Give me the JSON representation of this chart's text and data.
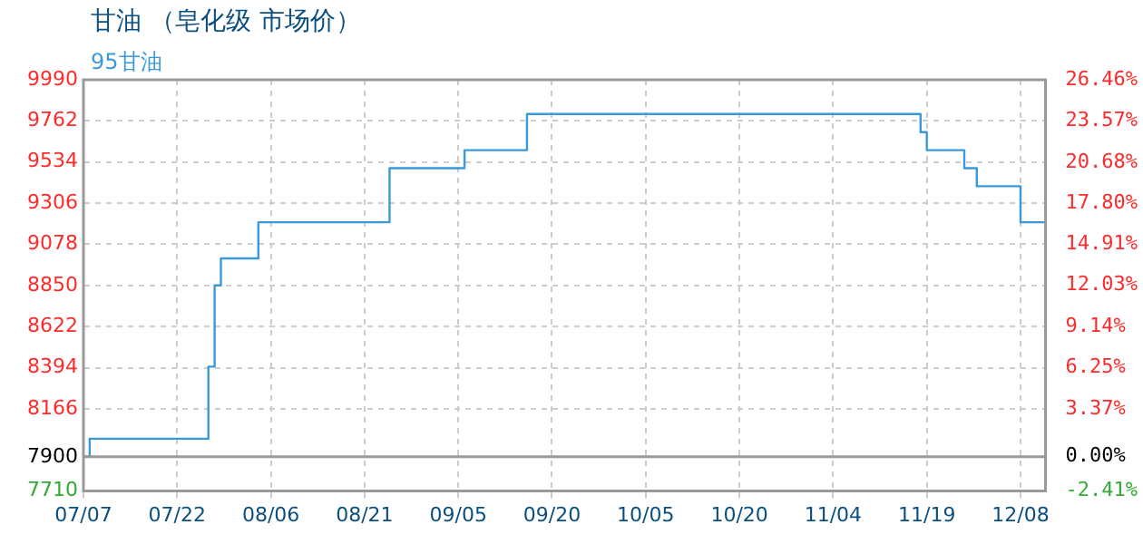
{
  "chart_data": {
    "type": "step",
    "title": "甘油 （皂化级 市场价）",
    "categories": [
      "07/07",
      null,
      null,
      null,
      null,
      null,
      null,
      null,
      null,
      null,
      null,
      null,
      null,
      null,
      null,
      "07/22",
      null,
      null,
      null,
      null,
      null,
      null,
      null,
      null,
      null,
      null,
      null,
      null,
      null,
      null,
      "08/06",
      null,
      null,
      null,
      null,
      null,
      null,
      null,
      null,
      null,
      null,
      null,
      null,
      null,
      null,
      "08/21",
      null,
      null,
      null,
      null,
      null,
      null,
      null,
      null,
      null,
      null,
      null,
      null,
      null,
      null,
      "09/05",
      null,
      null,
      null,
      null,
      null,
      null,
      null,
      null,
      null,
      null,
      null,
      null,
      null,
      null,
      "09/20",
      null,
      null,
      null,
      null,
      null,
      null,
      null,
      null,
      null,
      null,
      null,
      null,
      null,
      null,
      "10/05",
      null,
      null,
      null,
      null,
      null,
      null,
      null,
      null,
      null,
      null,
      null,
      null,
      null,
      null,
      "10/20",
      null,
      null,
      null,
      null,
      null,
      null,
      null,
      null,
      null,
      null,
      null,
      null,
      null,
      null,
      "11/04",
      null,
      null,
      null,
      null,
      null,
      null,
      null,
      null,
      null,
      null,
      null,
      null,
      null,
      null,
      "11/19",
      null,
      null,
      null,
      null,
      null,
      null,
      null,
      null,
      null,
      null,
      null,
      null,
      null,
      null,
      "12/08",
      null,
      null,
      null,
      null
    ],
    "series": [
      {
        "name": "95甘油",
        "color": "#3a9ad9",
        "values": [
          7900,
          7900,
          8000,
          8000,
          8000,
          8000,
          8000,
          8000,
          8000,
          8000,
          8000,
          8000,
          8000,
          8000,
          8000,
          8000,
          8000,
          8000,
          8000,
          8000,
          8000,
          8400,
          8850,
          9000,
          9000,
          9000,
          9000,
          9000,
          9000,
          9200,
          9200,
          9200,
          9200,
          9200,
          9200,
          9200,
          9200,
          9200,
          9200,
          9200,
          9200,
          9200,
          9200,
          9200,
          9200,
          9200,
          9200,
          9200,
          9200,
          9200,
          9500,
          9500,
          9500,
          9500,
          9500,
          9500,
          9500,
          9500,
          9500,
          9500,
          9500,
          9500,
          9600,
          9600,
          9600,
          9600,
          9600,
          9600,
          9600,
          9600,
          9600,
          9600,
          9800,
          9800,
          9800,
          9800,
          9800,
          9800,
          9800,
          9800,
          9800,
          9800,
          9800,
          9800,
          9800,
          9800,
          9800,
          9800,
          9800,
          9800,
          9800,
          9800,
          9800,
          9800,
          9800,
          9800,
          9800,
          9800,
          9800,
          9800,
          9800,
          9800,
          9800,
          9800,
          9800,
          9800,
          9800,
          9800,
          9800,
          9800,
          9800,
          9800,
          9800,
          9800,
          9800,
          9800,
          9800,
          9800,
          9800,
          9800,
          9800,
          9800,
          9800,
          9800,
          9800,
          9800,
          9800,
          9800,
          9800,
          9800,
          9800,
          9800,
          9800,
          9800,
          9800,
          9700,
          9600,
          9600,
          9600,
          9600,
          9600,
          9600,
          9500,
          9500,
          9400,
          9400,
          9400,
          9400,
          9400,
          9400,
          9400,
          9200,
          9200,
          9200,
          9200
        ]
      }
    ],
    "ylim": [
      7710,
      9990
    ],
    "yticks": [
      7710,
      7900,
      8166,
      8394,
      8622,
      8850,
      9078,
      9306,
      9534,
      9762,
      9990
    ],
    "y2lim": [
      -2.41,
      26.46
    ],
    "y2ticks": [
      {
        "value": -2.41,
        "label": "-2.41%"
      },
      {
        "value": 0,
        "label": "0.00%"
      },
      {
        "value": 3.37,
        "label": "3.37%"
      },
      {
        "value": 6.25,
        "label": "6.25%"
      },
      {
        "value": 9.14,
        "label": "9.14%"
      },
      {
        "value": 12.03,
        "label": "12.03%"
      },
      {
        "value": 14.91,
        "label": "14.91%"
      },
      {
        "value": 17.8,
        "label": "17.80%"
      },
      {
        "value": 20.68,
        "label": "20.68%"
      },
      {
        "value": 23.57,
        "label": "23.57%"
      },
      {
        "value": 26.46,
        "label": "26.46%"
      }
    ],
    "ref_lines": [
      {
        "axis": "y",
        "value": 7900,
        "color": "#999999"
      }
    ],
    "grid": true,
    "legend": "top left"
  }
}
